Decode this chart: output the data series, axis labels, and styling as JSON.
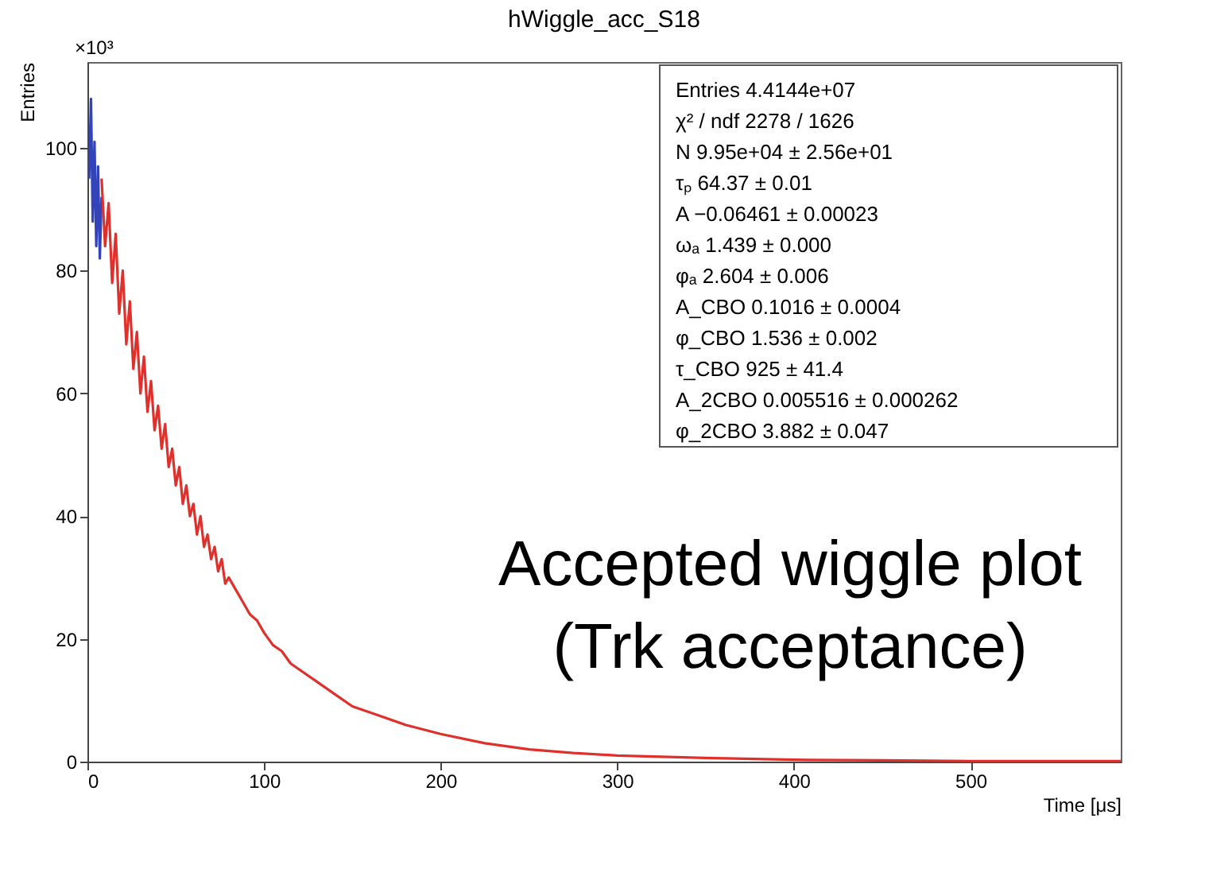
{
  "chart_data": {
    "type": "line",
    "title": "hWiggle_acc_S18",
    "xlabel": "Time [μs]",
    "ylabel": "Entries",
    "xlim": [
      0,
      585
    ],
    "xticks": [
      0,
      100,
      200,
      300,
      400,
      500
    ],
    "ylim": [
      0,
      114
    ],
    "yticks": [
      0,
      20,
      40,
      60,
      80,
      100
    ],
    "grid": false,
    "marker": "none",
    "line_style": "solid",
    "series": [
      {
        "color": "#3344bb",
        "x": [
          1,
          2,
          3,
          4,
          5,
          6,
          7,
          8
        ],
        "values": [
          95,
          108,
          88,
          101,
          84,
          97,
          82,
          92
        ]
      },
      {
        "color": "#e0302c",
        "x": [
          8,
          10,
          12,
          14,
          16,
          18,
          20,
          22,
          24,
          26,
          28,
          30,
          32,
          34,
          36,
          38,
          40,
          42,
          44,
          46,
          48,
          50,
          52,
          54,
          56,
          58,
          60,
          62,
          64,
          66,
          68,
          70,
          72,
          74,
          76,
          78,
          80,
          84,
          88,
          92,
          96,
          100,
          105,
          110,
          115,
          120,
          130,
          140,
          150,
          165,
          180,
          200,
          225,
          250,
          275,
          300,
          350,
          400,
          450,
          500,
          585
        ],
        "values": [
          95,
          84,
          91,
          78,
          86,
          73,
          80,
          68,
          75,
          64,
          70,
          60,
          66,
          57,
          62,
          54,
          58,
          51,
          55,
          48,
          51,
          45,
          48,
          42,
          45,
          40,
          42,
          37,
          40,
          35,
          37,
          33,
          35,
          31,
          33,
          29,
          30,
          28,
          26,
          24,
          23,
          21,
          19,
          18,
          16,
          15,
          13,
          11,
          9,
          7.5,
          6,
          4.5,
          3,
          2,
          1.4,
          1,
          0.6,
          0.3,
          0.2,
          0.1,
          0.1
        ]
      }
    ],
    "annotations": [
      "×10³",
      "Entries  4.4144e+07",
      "χ² / ndf  2278 / 1626",
      "N  9.95e+04 ± 2.56e+01",
      "τₚ  64.37 ± 0.01",
      "A  −0.06461 ± 0.00023",
      "ωₐ  1.439 ± 0.000",
      "φₐ  2.604 ± 0.006",
      "A_CBO  0.1016 ± 0.0004",
      "φ_CBO  1.536 ± 0.002",
      "τ_CBO  925 ± 41.4",
      "A_2CBO  0.005516 ± 0.000262",
      "φ_2CBO  3.882 ± 0.047",
      "Accepted wiggle plot",
      "(Trk acceptance)"
    ]
  }
}
